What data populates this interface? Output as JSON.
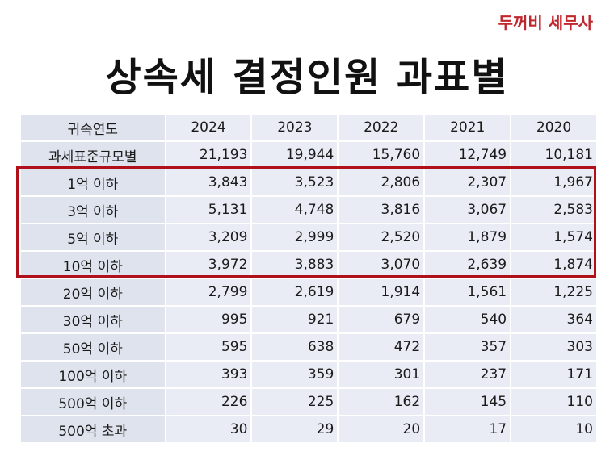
{
  "brand": "두꺼비 세무사",
  "title": "상속세 결정인원 과표별",
  "accent_color": "#b0101a",
  "table": {
    "header_label": "귀속연도",
    "years": [
      "2024",
      "2023",
      "2022",
      "2021",
      "2020"
    ],
    "rows": [
      {
        "label": "과세표준규모별",
        "values": [
          "21,193",
          "19,944",
          "15,760",
          "12,749",
          "10,181"
        ]
      },
      {
        "label": "1억 이하",
        "values": [
          "3,843",
          "3,523",
          "2,806",
          "2,307",
          "1,967"
        ]
      },
      {
        "label": "3억 이하",
        "values": [
          "5,131",
          "4,748",
          "3,816",
          "3,067",
          "2,583"
        ]
      },
      {
        "label": "5억 이하",
        "values": [
          "3,209",
          "2,999",
          "2,520",
          "1,879",
          "1,574"
        ]
      },
      {
        "label": "10억 이하",
        "values": [
          "3,972",
          "3,883",
          "3,070",
          "2,639",
          "1,874"
        ]
      },
      {
        "label": "20억 이하",
        "values": [
          "2,799",
          "2,619",
          "1,914",
          "1,561",
          "1,225"
        ]
      },
      {
        "label": "30억 이하",
        "values": [
          "995",
          "921",
          "679",
          "540",
          "364"
        ]
      },
      {
        "label": "50억 이하",
        "values": [
          "595",
          "638",
          "472",
          "357",
          "303"
        ]
      },
      {
        "label": "100억 이하",
        "values": [
          "393",
          "359",
          "301",
          "237",
          "171"
        ]
      },
      {
        "label": "500억 이하",
        "values": [
          "226",
          "225",
          "162",
          "145",
          "110"
        ]
      },
      {
        "label": "500억 초과",
        "values": [
          "30",
          "29",
          "20",
          "17",
          "10"
        ]
      }
    ]
  }
}
